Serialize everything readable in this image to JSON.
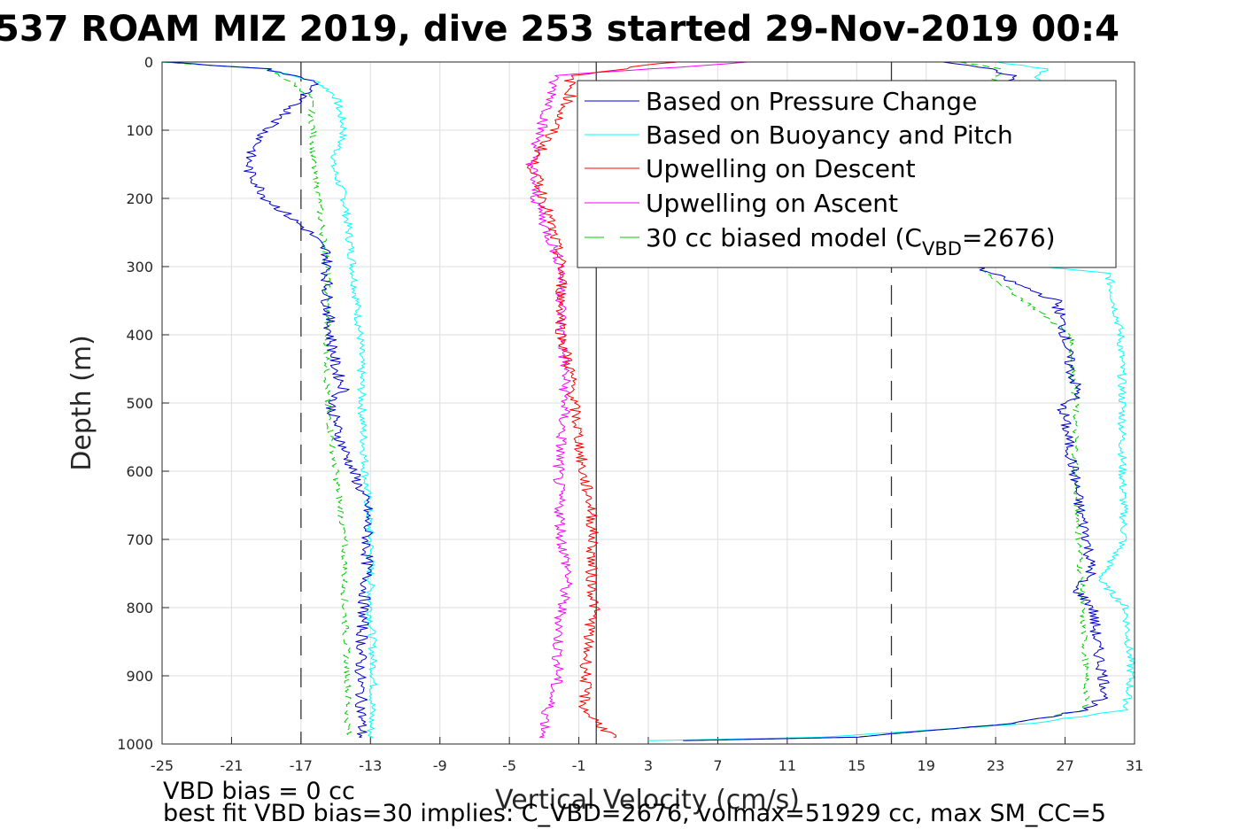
{
  "chart_data": {
    "type": "line",
    "title": "537 ROAM MIZ 2019, dive 253 started 29-Nov-2019 00:4",
    "xlabel": "Vertical Velocity (cm/s)",
    "ylabel": "Depth (m)",
    "xlim": [
      -25,
      31
    ],
    "ylim": [
      0,
      1000
    ],
    "y_reversed": true,
    "grid": true,
    "x_ticks": [
      "-25",
      "-21",
      "-17",
      "-13",
      "-9",
      "-5",
      "-1",
      "3",
      "7",
      "11",
      "15",
      "19",
      "23",
      "27",
      "31"
    ],
    "y_ticks": [
      "0",
      "100",
      "200",
      "300",
      "400",
      "500",
      "600",
      "700",
      "800",
      "900",
      "1000"
    ],
    "legend_placement": "top-right",
    "reference_lines": {
      "vertical_solid": [
        0
      ],
      "vertical_dashed": [
        -17,
        17
      ]
    },
    "series": [
      {
        "name": "Based on Pressure Change",
        "color": "#0000cc",
        "style": "solid",
        "descent": {
          "depth": [
            0,
            10,
            30,
            50,
            80,
            100,
            120,
            140,
            160,
            180,
            200,
            220,
            250,
            280,
            300,
            350,
            400,
            450,
            480,
            500,
            550,
            600,
            650,
            700,
            750,
            800,
            850,
            900,
            950,
            990
          ],
          "velocity": [
            -25,
            -19,
            -16,
            -17,
            -18,
            -19,
            -19.5,
            -20,
            -20,
            -19.5,
            -19,
            -18,
            -16.5,
            -15.5,
            -15.5,
            -15.5,
            -15.3,
            -15,
            -14.5,
            -15.3,
            -14.8,
            -14,
            -13.2,
            -13.2,
            -13.2,
            -13.4,
            -13.5,
            -13.6,
            -13.5,
            -13.5
          ]
        },
        "ascent": {
          "depth": [
            0,
            10,
            20,
            300,
            350,
            400,
            450,
            490,
            500,
            600,
            650,
            700,
            750,
            770,
            800,
            850,
            900,
            930,
            950,
            970,
            990,
            995
          ],
          "velocity": [
            20,
            22.5,
            24,
            21.8,
            26.5,
            27,
            27.3,
            27.8,
            26.8,
            27.5,
            27.8,
            28.3,
            28.5,
            27.5,
            28.6,
            28.8,
            29.2,
            29.4,
            28,
            24,
            15,
            5
          ]
        }
      },
      {
        "name": "Based on Buoyancy and Pitch",
        "color": "#00ffff",
        "style": "solid",
        "descent": {
          "depth": [
            0,
            10,
            30,
            50,
            100,
            150,
            200,
            300,
            400,
            500,
            600,
            700,
            800,
            900,
            990
          ],
          "velocity": [
            -25,
            -19,
            -16,
            -15,
            -14.5,
            -15.2,
            -14.5,
            -14,
            -13.6,
            -13.5,
            -13.3,
            -13,
            -13,
            -12.8,
            -13
          ]
        },
        "ascent": {
          "depth": [
            0,
            10,
            20,
            300,
            310,
            400,
            500,
            600,
            700,
            760,
            800,
            900,
            950,
            970,
            990,
            995
          ],
          "velocity": [
            23,
            26,
            25.5,
            25.5,
            29.5,
            30.2,
            30.3,
            30.3,
            30.4,
            29,
            30.5,
            30.8,
            30.5,
            25,
            13,
            3
          ]
        }
      },
      {
        "name": "Upwelling on Descent",
        "color": "#ff0000",
        "style": "solid",
        "depth": [
          0,
          20,
          50,
          100,
          150,
          200,
          250,
          300,
          350,
          400,
          450,
          500,
          550,
          600,
          650,
          700,
          750,
          800,
          850,
          900,
          950,
          990
        ],
        "velocity": [
          4.5,
          -1.5,
          -1.5,
          -2.5,
          -3.7,
          -3,
          -2.5,
          -2,
          -2,
          -2,
          -1.5,
          -1.3,
          -1,
          -0.8,
          -0.3,
          -0.2,
          -0.3,
          -0.1,
          -0.5,
          -0.6,
          -0.7,
          1
        ]
      },
      {
        "name": "Upwelling on Ascent",
        "color": "#ff00ff",
        "style": "solid",
        "depth": [
          0,
          20,
          50,
          100,
          150,
          200,
          250,
          300,
          350,
          400,
          450,
          500,
          550,
          600,
          650,
          700,
          750,
          800,
          850,
          900,
          950,
          990
        ],
        "velocity": [
          9,
          -2.5,
          -2.5,
          -3.2,
          -3.7,
          -3.5,
          -2.8,
          -2,
          -2,
          -2,
          -1.8,
          -1.8,
          -2,
          -2.2,
          -2.1,
          -2,
          -1.6,
          -2,
          -2.2,
          -2.2,
          -2.8,
          -3
        ]
      },
      {
        "name": "30 cc biased model (C",
        "name_sub": "VBD",
        "name_suffix": "=2676)",
        "color": "#00cc00",
        "style": "dashed",
        "descent": {
          "depth": [
            0,
            10,
            30,
            50,
            100,
            150,
            200,
            300,
            400,
            500,
            600,
            700,
            800,
            900,
            990
          ],
          "velocity": [
            -25,
            -19,
            -17.5,
            -16.5,
            -16.3,
            -16.3,
            -16,
            -15.5,
            -15.5,
            -15.5,
            -15,
            -14.5,
            -14.5,
            -14.3,
            -14.3
          ]
        },
        "ascent": {
          "depth": [
            0,
            10,
            20,
            300,
            400,
            500,
            600,
            700,
            800,
            900,
            950,
            970,
            990,
            995
          ],
          "velocity": [
            21,
            23.5,
            23,
            22,
            27.3,
            27.6,
            27.6,
            27.8,
            28,
            28.2,
            28.2,
            24,
            15,
            5
          ]
        }
      }
    ],
    "footnotes": [
      "VBD bias = 0 cc",
      "best fit VBD bias=30 implies: C_VBD=2676, volmax=51929 cc, max SM_CC=5"
    ]
  }
}
